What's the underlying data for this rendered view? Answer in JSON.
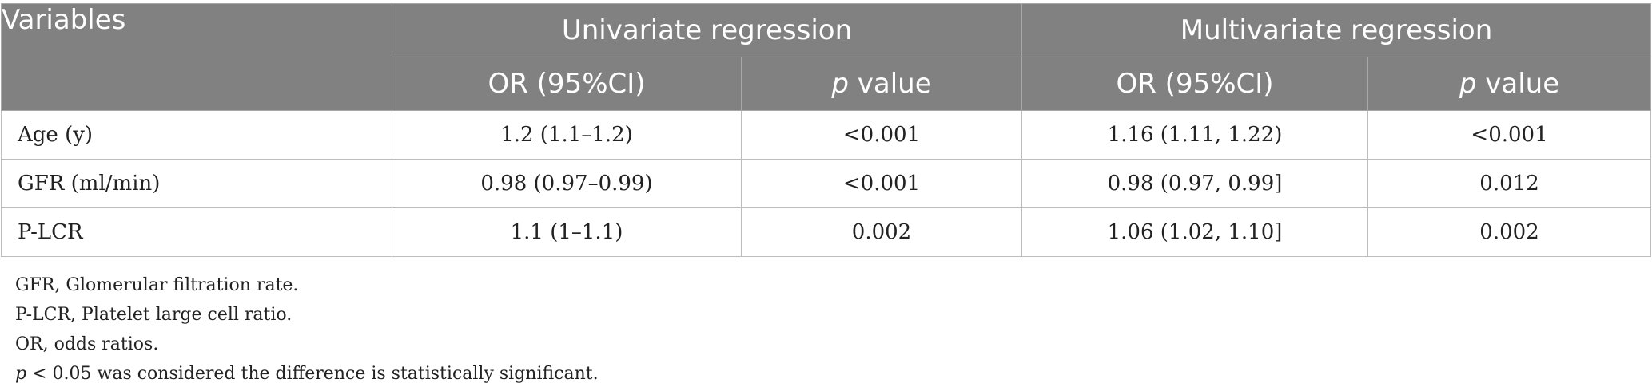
{
  "table": {
    "header": {
      "variables": "Variables",
      "univariate": "Univariate regression",
      "multivariate": "Multivariate regression",
      "or_label": "OR (95%CI)",
      "p_italic": "p",
      "p_rest": " value"
    },
    "rows": [
      {
        "variable": "Age (y)",
        "uni_or": "1.2 (1.1–1.2)",
        "uni_p": "<0.001",
        "multi_or": "1.16 (1.11, 1.22)",
        "multi_p": "<0.001"
      },
      {
        "variable": "GFR (ml/min)",
        "uni_or": "0.98 (0.97–0.99)",
        "uni_p": "<0.001",
        "multi_or": "0.98 (0.97, 0.99]",
        "multi_p": "0.012"
      },
      {
        "variable": "P-LCR",
        "uni_or": "1.1 (1–1.1)",
        "uni_p": "0.002",
        "multi_or": "1.06 (1.02, 1.10]",
        "multi_p": "0.002"
      }
    ]
  },
  "footnotes": {
    "gfr": "GFR, Glomerular filtration rate.",
    "plcr": "P-LCR, Platelet large cell ratio.",
    "or": "OR, odds ratios.",
    "sig_italic": "p",
    "sig_rest": " < 0.05 was considered the difference is statistically significant."
  }
}
